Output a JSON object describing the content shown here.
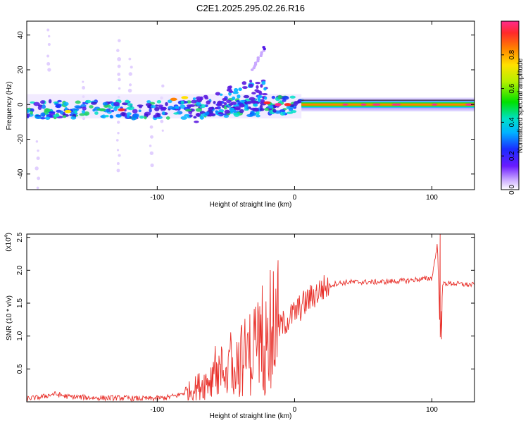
{
  "page": {
    "title": "C2E1.2025.295.02.26.R16"
  },
  "colors": {
    "snr_line": "#e8302a",
    "wave_band": "#3a0fd0"
  },
  "chart_data": [
    {
      "type": "heatmap",
      "xlabel": "Height of straight line (km)",
      "ylabel": "Frequency (Hz)",
      "xlim": [
        -195,
        131
      ],
      "ylim": [
        -49,
        48
      ],
      "xticks": [
        -100,
        0,
        100
      ],
      "yticks": [
        -40,
        -20,
        0,
        20,
        40
      ],
      "colorbar": {
        "label": "Normalized spectral amplitude",
        "range": [
          0.0,
          1.0
        ],
        "ticks": [
          0.0,
          0.2,
          0.4,
          0.6,
          0.8
        ]
      },
      "features": [
        {
          "name": "noisy-spectrum",
          "x": [
            -195,
            5
          ],
          "center_freq_hz": -2,
          "width_hz": 10
        },
        {
          "name": "rising-branch",
          "x": [
            -30,
            -22
          ],
          "freq_hz": [
            20,
            33
          ]
        },
        {
          "name": "steady-band",
          "x": [
            5,
            131
          ],
          "center_freq_hz": 0,
          "amplitude": 0.95
        }
      ]
    },
    {
      "type": "line",
      "xlabel": "Height of straight line (km)",
      "ylabel": "SNR (10 * v/v)",
      "y_scale_label": "(x10",
      "y_scale_exp": "4",
      "xlim": [
        -195,
        131
      ],
      "ylim": [
        0,
        2.55
      ],
      "xticks": [
        -100,
        0,
        100
      ],
      "yticks": [
        0.5,
        1.0,
        1.5,
        2.0,
        2.5
      ],
      "series": [
        {
          "name": "SNR",
          "x": [
            -195,
            -185,
            -175,
            -165,
            -155,
            -145,
            -135,
            -125,
            -115,
            -105,
            -95,
            -85,
            -75,
            -65,
            -55,
            -45,
            -35,
            -25,
            -18,
            -10,
            0,
            10,
            20,
            30,
            40,
            50,
            60,
            70,
            80,
            90,
            100,
            104,
            106,
            108,
            115,
            125,
            131
          ],
          "y": [
            0.05,
            0.07,
            0.12,
            0.08,
            0.07,
            0.06,
            0.06,
            0.06,
            0.05,
            0.05,
            0.06,
            0.1,
            0.18,
            0.3,
            0.45,
            0.55,
            0.7,
            0.9,
            1.0,
            1.15,
            1.35,
            1.55,
            1.72,
            1.8,
            1.82,
            1.82,
            1.82,
            1.83,
            1.84,
            1.86,
            1.88,
            2.4,
            1.0,
            1.8,
            1.8,
            1.78,
            1.78
          ]
        }
      ],
      "spikes": [
        {
          "x": -12,
          "y": 2.15
        },
        {
          "x": 106,
          "y": 2.55
        },
        {
          "x": 107,
          "y": 0.95
        }
      ]
    }
  ]
}
